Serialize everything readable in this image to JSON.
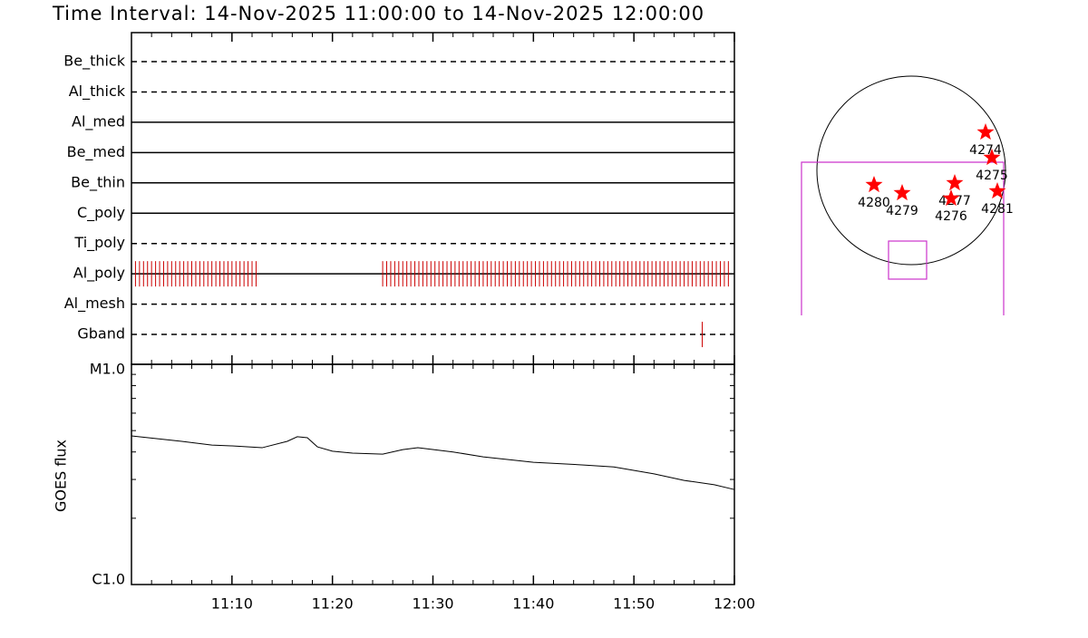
{
  "title": "Time Interval: 14-Nov-2025 11:00:00 to 14-Nov-2025 12:00:00",
  "chart_data": [
    {
      "type": "event",
      "xlim": [
        0,
        60
      ],
      "color": "#cc0000",
      "filters": [
        {
          "name": "Be_thick",
          "line": "dashed",
          "times": []
        },
        {
          "name": "Al_thick",
          "line": "dashed",
          "times": []
        },
        {
          "name": "Al_med",
          "line": "solid",
          "times": []
        },
        {
          "name": "Be_med",
          "line": "solid",
          "times": []
        },
        {
          "name": "Be_thin",
          "line": "solid",
          "times": []
        },
        {
          "name": "C_poly",
          "line": "solid",
          "times": []
        },
        {
          "name": "Ti_poly",
          "line": "dashed",
          "times": []
        },
        {
          "name": "Al_poly",
          "line": "solid",
          "times": [
            0.4,
            0.8,
            1.2,
            1.6,
            2,
            2.4,
            2.8,
            3.2,
            3.6,
            4,
            4.4,
            4.8,
            5.2,
            5.6,
            6,
            6.4,
            6.8,
            7.2,
            7.6,
            8,
            8.4,
            8.8,
            9.2,
            9.6,
            10,
            10.4,
            10.8,
            11.2,
            11.6,
            12,
            12.4,
            25,
            25.4,
            25.8,
            26.2,
            26.6,
            27,
            27.4,
            27.8,
            28.2,
            28.6,
            29,
            29.4,
            29.8,
            30.2,
            30.6,
            31,
            31.4,
            31.8,
            32.2,
            32.6,
            33,
            33.4,
            33.8,
            34.2,
            34.6,
            35,
            35.4,
            35.8,
            36.2,
            36.6,
            37,
            37.4,
            37.8,
            38.2,
            38.6,
            39,
            39.4,
            39.8,
            40.2,
            40.6,
            41,
            41.4,
            41.8,
            42.2,
            42.6,
            43,
            43.4,
            43.8,
            44.2,
            44.6,
            45,
            45.4,
            45.8,
            46.2,
            46.6,
            47,
            47.4,
            47.8,
            48.2,
            48.6,
            49,
            49.4,
            49.8,
            50.2,
            50.6,
            51,
            51.4,
            51.8,
            52.2,
            52.6,
            53,
            53.4,
            53.8,
            54.2,
            54.6,
            55,
            55.4,
            55.8,
            56.2,
            56.6,
            57,
            57.4,
            57.8,
            58.2,
            58.6,
            59,
            59.4
          ]
        },
        {
          "name": "Al_mesh",
          "line": "dashed",
          "times": []
        },
        {
          "name": "Gband",
          "line": "dashed",
          "times": [
            56.8
          ]
        }
      ]
    },
    {
      "type": "line",
      "y_label": "GOES flux",
      "log_scale": true,
      "color": "#000000",
      "xlim": [
        0,
        60
      ],
      "xticks": [
        {
          "value": 10,
          "label": "11:10"
        },
        {
          "value": 20,
          "label": "11:20"
        },
        {
          "value": 30,
          "label": "11:30"
        },
        {
          "value": 40,
          "label": "11:40"
        },
        {
          "value": 50,
          "label": "11:50"
        },
        {
          "value": 60,
          "label": "12:00"
        }
      ],
      "xminorticks": [
        2,
        4,
        6,
        8,
        12,
        14,
        16,
        18,
        22,
        24,
        26,
        28,
        32,
        34,
        36,
        38,
        42,
        44,
        46,
        48,
        52,
        54,
        56,
        58
      ],
      "ylim": [
        1e-06,
        1e-05
      ],
      "yticks": [
        {
          "value": 1e-06,
          "label": "C1.0"
        },
        {
          "value": 1e-05,
          "label": "M1.0"
        }
      ],
      "yminorticks": [
        2e-06,
        3e-06,
        4e-06,
        5e-06,
        6e-06,
        7e-06,
        8e-06,
        9e-06
      ],
      "x": [
        0,
        5,
        8,
        10,
        13,
        15.5,
        16.5,
        17.5,
        18.5,
        20,
        22,
        25,
        27,
        28.5,
        32,
        35,
        40,
        45,
        48,
        52,
        55,
        58,
        60
      ],
      "values": [
        4.73e-06,
        4.47e-06,
        4.3e-06,
        4.26e-06,
        4.18e-06,
        4.47e-06,
        4.69e-06,
        4.64e-06,
        4.22e-06,
        4.03e-06,
        3.95e-06,
        3.91e-06,
        4.1e-06,
        4.18e-06,
        4e-06,
        3.8e-06,
        3.59e-06,
        3.49e-06,
        3.42e-06,
        3.18e-06,
        2.97e-06,
        2.84e-06,
        2.7e-06
      ]
    }
  ],
  "regions": [
    "4274",
    "4275",
    "4277",
    "4276",
    "4281",
    "4280",
    "4279"
  ]
}
